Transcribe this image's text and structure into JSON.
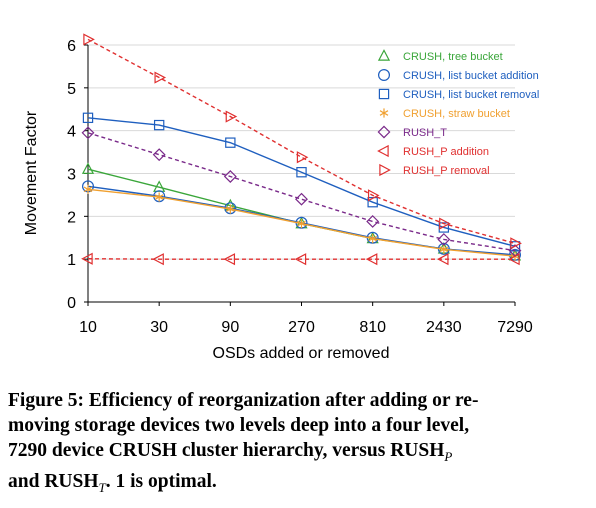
{
  "chart_data": {
    "type": "line",
    "xlabel": "OSDs added or removed",
    "ylabel": "Movement Factor",
    "categories": [
      "10",
      "30",
      "90",
      "270",
      "810",
      "2430",
      "7290"
    ],
    "ylim": [
      0,
      6
    ],
    "yticks": [
      "0",
      "1",
      "2",
      "3",
      "4",
      "5",
      "6"
    ],
    "grid": "horizontal",
    "legend": "top-right",
    "series": [
      {
        "name": "CRUSH, tree bucket",
        "color": "#3aa63a",
        "marker": "triangle-up",
        "dash": "solid",
        "values": [
          3.1,
          2.68,
          2.25,
          1.83,
          1.48,
          1.24,
          1.08
        ]
      },
      {
        "name": "CRUSH, list bucket addition",
        "color": "#1f5fbf",
        "marker": "circle",
        "dash": "solid",
        "values": [
          2.7,
          2.47,
          2.19,
          1.85,
          1.5,
          1.24,
          1.1
        ]
      },
      {
        "name": "CRUSH, list bucket removal",
        "color": "#1f5fbf",
        "marker": "square",
        "dash": "solid",
        "values": [
          4.3,
          4.13,
          3.72,
          3.03,
          2.33,
          1.74,
          1.3
        ]
      },
      {
        "name": "CRUSH, straw bucket",
        "color": "#f0a030",
        "marker": "star",
        "dash": "solid",
        "values": [
          2.63,
          2.45,
          2.17,
          1.83,
          1.48,
          1.23,
          1.07
        ]
      },
      {
        "name": "RUSH_T",
        "color": "#7a2a8a",
        "marker": "diamond",
        "dash": "4,3",
        "values": [
          3.95,
          3.44,
          2.93,
          2.4,
          1.88,
          1.46,
          1.2
        ]
      },
      {
        "name": "RUSH_P addition",
        "color": "#e03030",
        "marker": "triangle-left",
        "dash": "4,3",
        "values": [
          1.01,
          1.0,
          1.0,
          1.0,
          1.0,
          1.0,
          1.0
        ]
      },
      {
        "name": "RUSH_P removal",
        "color": "#e03030",
        "marker": "triangle-right",
        "dash": "4,3",
        "values": [
          6.13,
          5.24,
          4.33,
          3.38,
          2.49,
          1.83,
          1.37
        ]
      }
    ]
  },
  "caption": {
    "l1": "Figure 5: Efficiency of reorganization after adding or re-",
    "l2": "moving storage devices two levels deep into a four level,",
    "l3a": "7290 device CRUSH cluster hierarchy, versus RUSH",
    "l3sub": "P",
    "l4a": "and RUSH",
    "l4sub": "T",
    "l4b": ". 1 is optimal."
  }
}
